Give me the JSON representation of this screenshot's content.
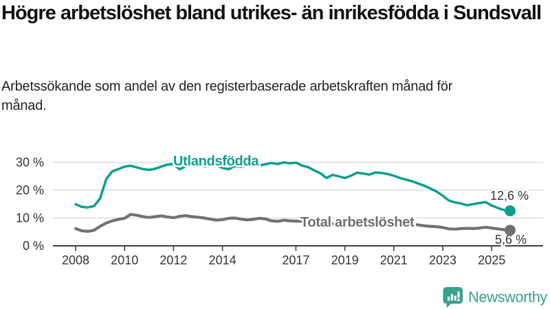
{
  "title": "Högre arbetslöshet bland utrikes- än inrikesfödda i Sundsvall",
  "subtitle": "Arbetssökande som andel av den registerbaserade arbetskraften månad för månad.",
  "branding": {
    "logo_text": "Newsworthy",
    "logo_icon": "bar-chart-speech-bubble-icon"
  },
  "colors": {
    "teal": "#0aa08e",
    "gray_line": "#717171",
    "gray_label": "#6e6e6e",
    "axis_text": "#333333",
    "gridline": "#dcdcdc",
    "axis_line": "#3f3f3f",
    "logo_teal": "#3aa08f"
  },
  "chart_data": {
    "type": "line",
    "title": "Högre arbetslöshet bland utrikes- än inrikesfödda i Sundsvall",
    "subtitle": "Arbetssökande som andel av den registerbaserade arbetskraften månad för månad.",
    "xlabel": "",
    "ylabel": "",
    "grid": "horizontal",
    "legend_position": "inline-labels",
    "x_start": 2008.0,
    "x_step": 0.25,
    "xlim": [
      2007.5,
      2026.3
    ],
    "ylim": [
      0,
      32
    ],
    "x_ticks": [
      2008,
      2010,
      2012,
      2014,
      2017,
      2019,
      2021,
      2023,
      2025
    ],
    "x_tick_labels": [
      "2008",
      "2010",
      "2012",
      "2014",
      "2017",
      "2019",
      "2021",
      "2023",
      "2025"
    ],
    "y_ticks": [
      0,
      10,
      20,
      30
    ],
    "y_tick_labels": [
      "0 %",
      "10 %",
      "20 %",
      "30 %"
    ],
    "series": [
      {
        "name": "Utlandsfödda",
        "slug": "utlandsfodda",
        "color": "#0aa08e",
        "end_label": "12,6 %",
        "values": [
          15.0,
          14.0,
          13.8,
          14.3,
          17.0,
          24.0,
          26.8,
          27.6,
          28.5,
          28.8,
          28.2,
          27.6,
          27.3,
          27.7,
          28.5,
          29.2,
          29.4,
          27.5,
          28.6,
          29.5,
          29.2,
          28.5,
          28.9,
          29.0,
          28.0,
          27.5,
          28.7,
          28.4,
          29.0,
          29.5,
          28.9,
          29.3,
          29.8,
          29.4,
          30.0,
          29.7,
          29.9,
          28.9,
          28.3,
          27.1,
          26.1,
          24.4,
          25.5,
          25.0,
          24.4,
          25.2,
          26.3,
          26.0,
          25.6,
          26.4,
          26.2,
          25.8,
          25.2,
          24.4,
          23.8,
          23.2,
          22.4,
          21.6,
          20.6,
          19.5,
          18.0,
          16.3,
          15.6,
          15.2,
          14.6,
          15.0,
          15.4,
          15.7,
          14.5,
          13.6,
          12.9,
          12.6
        ]
      },
      {
        "name": "Total arbetslöshet",
        "slug": "total-arbetsloshet",
        "color": "#717171",
        "end_label": "5,6 %",
        "values": [
          6.2,
          5.4,
          5.2,
          5.6,
          7.0,
          8.2,
          9.0,
          9.5,
          9.9,
          11.3,
          11.0,
          10.5,
          10.2,
          10.5,
          10.8,
          10.4,
          10.1,
          10.6,
          10.9,
          10.5,
          10.3,
          10.0,
          9.6,
          9.2,
          9.4,
          9.9,
          10.0,
          9.6,
          9.3,
          9.5,
          9.9,
          9.7,
          9.0,
          8.8,
          9.2,
          9.0,
          8.9,
          8.8,
          8.6,
          8.4,
          8.2,
          8.0,
          8.0,
          7.9,
          7.7,
          7.6,
          7.5,
          7.6,
          8.3,
          9.2,
          9.0,
          8.8,
          8.6,
          8.4,
          8.1,
          7.8,
          7.5,
          7.2,
          7.0,
          6.9,
          6.6,
          6.1,
          6.0,
          6.2,
          6.3,
          6.2,
          6.4,
          6.7,
          6.4,
          6.1,
          5.8,
          5.6
        ]
      }
    ]
  }
}
